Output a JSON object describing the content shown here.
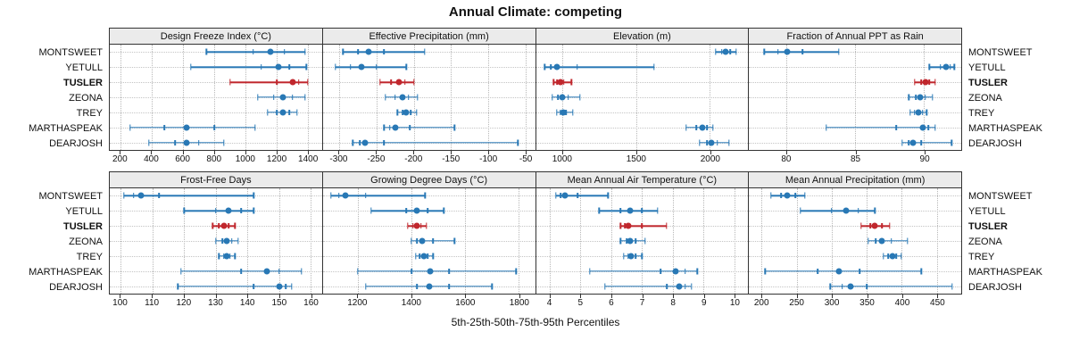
{
  "title": "Annual Climate: competing",
  "caption": "5th-25th-50th-75th-95th Percentiles",
  "stations": [
    "MONTSWEET",
    "YETULL",
    "TUSLER",
    "ZEONA",
    "TREY",
    "MARTHASPEAK",
    "DEARJOSH"
  ],
  "highlight_station": "TUSLER",
  "colors": {
    "normal": "#2878b5",
    "highlight": "#c0272d",
    "panel_header_bg": "#ebebeb",
    "panel_border": "#333333",
    "grid": "#b8b8b8"
  },
  "chart_data": [
    {
      "type": "dot-interval",
      "title": "Design Freeze Index (°C)",
      "ticks": [
        200,
        400,
        600,
        800,
        1000,
        1200,
        1400
      ],
      "xlim": [
        130,
        1490
      ],
      "percentile_order": [
        "p5",
        "p25",
        "p50",
        "p75",
        "p95"
      ],
      "series": {
        "MONTSWEET": [
          750,
          1050,
          1160,
          1250,
          1380
        ],
        "YETULL": [
          650,
          1100,
          1210,
          1280,
          1390
        ],
        "TUSLER": [
          900,
          1200,
          1300,
          1340,
          1400
        ],
        "ZEONA": [
          1080,
          1180,
          1240,
          1300,
          1380
        ],
        "TREY": [
          1140,
          1200,
          1240,
          1280,
          1330
        ],
        "MARTHASPEAK": [
          260,
          480,
          620,
          800,
          1060
        ],
        "DEARJOSH": [
          380,
          550,
          620,
          700,
          860
        ]
      }
    },
    {
      "type": "dot-interval",
      "title": "Effective Precipitation (mm)",
      "ticks": [
        -300,
        -250,
        -200,
        -150,
        -100,
        -50
      ],
      "xlim": [
        -322,
        -37
      ],
      "percentile_order": [
        "p5",
        "p25",
        "p50",
        "p75",
        "p95"
      ],
      "series": {
        "MONTSWEET": [
          -295,
          -275,
          -260,
          -240,
          -185
        ],
        "YETULL": [
          -305,
          -285,
          -270,
          -250,
          -210
        ],
        "TUSLER": [
          -245,
          -230,
          -220,
          -212,
          -200
        ],
        "ZEONA": [
          -238,
          -225,
          -215,
          -207,
          -195
        ],
        "TREY": [
          -222,
          -215,
          -210,
          -204,
          -196
        ],
        "MARTHASPEAK": [
          -240,
          -232,
          -225,
          -205,
          -145
        ],
        "DEARJOSH": [
          -282,
          -272,
          -265,
          -240,
          -60
        ]
      }
    },
    {
      "type": "dot-interval",
      "title": "Elevation (m)",
      "ticks": [
        1000,
        1500,
        2000
      ],
      "xlim": [
        820,
        2260
      ],
      "percentile_order": [
        "p5",
        "p25",
        "p50",
        "p75",
        "p95"
      ],
      "series": {
        "MONTSWEET": [
          2040,
          2080,
          2110,
          2140,
          2180
        ],
        "YETULL": [
          880,
          920,
          960,
          1100,
          1620
        ],
        "TUSLER": [
          940,
          965,
          985,
          1010,
          1060
        ],
        "ZEONA": [
          930,
          970,
          1000,
          1040,
          1120
        ],
        "TREY": [
          960,
          985,
          1005,
          1025,
          1070
        ],
        "MARTHASPEAK": [
          1840,
          1910,
          1950,
          1980,
          2020
        ],
        "DEARJOSH": [
          1930,
          1980,
          2010,
          2050,
          2130
        ]
      }
    },
    {
      "type": "dot-interval",
      "title": "Fraction of Annual PPT as Rain",
      "ticks": [
        80,
        85,
        90
      ],
      "xlim": [
        77.3,
        92.7
      ],
      "percentile_order": [
        "p5",
        "p25",
        "p50",
        "p75",
        "p95"
      ],
      "series": {
        "MONTSWEET": [
          78.4,
          79.4,
          80.1,
          81.2,
          83.8
        ],
        "YETULL": [
          90.4,
          91.2,
          91.6,
          91.9,
          92.2
        ],
        "TUSLER": [
          89.3,
          89.8,
          90.1,
          90.4,
          90.8
        ],
        "ZEONA": [
          88.9,
          89.4,
          89.7,
          90.1,
          90.6
        ],
        "TREY": [
          89.0,
          89.3,
          89.6,
          89.9,
          90.2
        ],
        "MARTHASPEAK": [
          82.9,
          88.0,
          89.9,
          90.3,
          90.8
        ],
        "DEARJOSH": [
          88.4,
          88.9,
          89.2,
          89.8,
          92.0
        ]
      }
    },
    {
      "type": "dot-interval",
      "title": "Frost-Free Days",
      "ticks": [
        100,
        110,
        120,
        130,
        140,
        150,
        160
      ],
      "xlim": [
        96.5,
        163.5
      ],
      "percentile_order": [
        "p5",
        "p25",
        "p50",
        "p75",
        "p95"
      ],
      "series": {
        "MONTSWEET": [
          101,
          104,
          106.5,
          112,
          142
        ],
        "YETULL": [
          120,
          130,
          134,
          138,
          142
        ],
        "TUSLER": [
          129,
          131,
          132.5,
          134,
          136
        ],
        "ZEONA": [
          130,
          132,
          133.5,
          135,
          137
        ],
        "TREY": [
          131,
          132.5,
          133.5,
          134.5,
          136
        ],
        "MARTHASPEAK": [
          119,
          138,
          146,
          150,
          157
        ],
        "DEARJOSH": [
          118,
          142,
          150,
          152,
          154
        ]
      }
    },
    {
      "type": "dot-interval",
      "title": "Growing Degree Days (°C)",
      "ticks": [
        1200,
        1400,
        1600,
        1800
      ],
      "xlim": [
        1070,
        1860
      ],
      "percentile_order": [
        "p5",
        "p25",
        "p50",
        "p75",
        "p95"
      ],
      "series": {
        "MONTSWEET": [
          1100,
          1130,
          1155,
          1230,
          1450
        ],
        "YETULL": [
          1250,
          1380,
          1420,
          1460,
          1520
        ],
        "TUSLER": [
          1385,
          1405,
          1420,
          1435,
          1455
        ],
        "ZEONA": [
          1400,
          1420,
          1440,
          1480,
          1560
        ],
        "TREY": [
          1415,
          1430,
          1445,
          1460,
          1480
        ],
        "MARTHASPEAK": [
          1200,
          1400,
          1470,
          1540,
          1790
        ],
        "DEARJOSH": [
          1230,
          1420,
          1465,
          1540,
          1700
        ]
      }
    },
    {
      "type": "dot-interval",
      "title": "Mean Annual Air Temperature (°C)",
      "ticks": [
        4,
        5,
        6,
        7,
        8,
        9,
        10
      ],
      "xlim": [
        3.55,
        10.45
      ],
      "percentile_order": [
        "p5",
        "p25",
        "p50",
        "p75",
        "p95"
      ],
      "series": {
        "MONTSWEET": [
          4.2,
          4.35,
          4.5,
          4.9,
          5.9
        ],
        "YETULL": [
          5.6,
          6.3,
          6.6,
          7.0,
          7.5
        ],
        "TUSLER": [
          6.3,
          6.45,
          6.55,
          7.0,
          7.8
        ],
        "ZEONA": [
          6.3,
          6.5,
          6.6,
          6.8,
          7.1
        ],
        "TREY": [
          6.4,
          6.55,
          6.65,
          6.8,
          7.0
        ],
        "MARTHASPEAK": [
          5.3,
          7.6,
          8.1,
          8.4,
          8.8
        ],
        "DEARJOSH": [
          5.8,
          7.8,
          8.2,
          8.4,
          8.6
        ]
      }
    },
    {
      "type": "dot-interval",
      "title": "Mean Annual Precipitation (mm)",
      "ticks": [
        200,
        250,
        300,
        350,
        400,
        450
      ],
      "xlim": [
        182,
        485
      ],
      "percentile_order": [
        "p5",
        "p25",
        "p50",
        "p75",
        "p95"
      ],
      "series": {
        "MONTSWEET": [
          213,
          228,
          237,
          248,
          262
        ],
        "YETULL": [
          255,
          300,
          320,
          338,
          362
        ],
        "TUSLER": [
          342,
          355,
          362,
          372,
          383
        ],
        "ZEONA": [
          352,
          363,
          372,
          385,
          408
        ],
        "TREY": [
          374,
          381,
          387,
          392,
          399
        ],
        "MARTHASPEAK": [
          205,
          280,
          310,
          340,
          428
        ],
        "DEARJOSH": [
          298,
          315,
          327,
          350,
          472
        ]
      }
    }
  ]
}
